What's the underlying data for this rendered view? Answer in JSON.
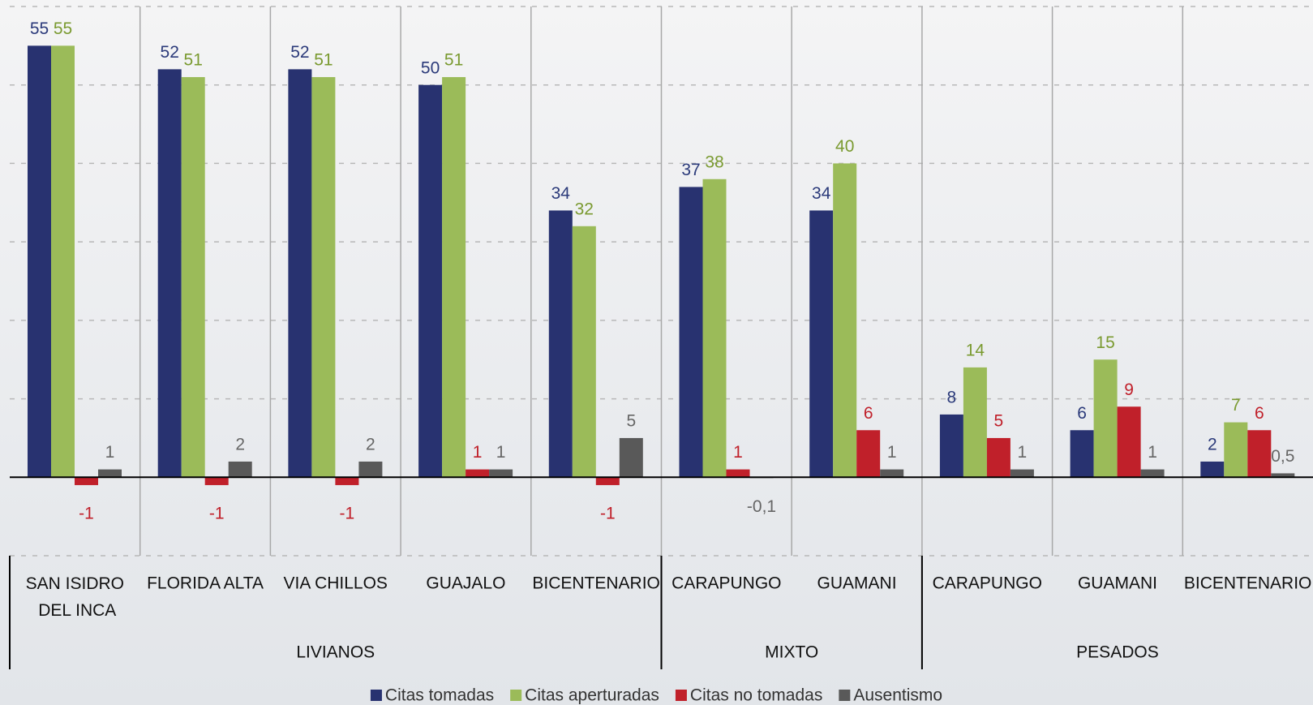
{
  "chart_data": {
    "type": "bar",
    "groups": [
      {
        "label": "LIVIANOS",
        "categories": [
          "SAN ISIDRO DEL INCA",
          "FLORIDA ALTA",
          "VIA CHILLOS",
          "GUAJALO",
          "BICENTENARIO"
        ]
      },
      {
        "label": "MIXTO",
        "categories": [
          "CARAPUNGO",
          "GUAMANI"
        ]
      },
      {
        "label": "PESADOS",
        "categories": [
          "CARAPUNGO",
          "GUAMANI",
          "BICENTENARIO"
        ]
      }
    ],
    "series": [
      {
        "name": "Citas tomadas",
        "color": "#283270",
        "label_color": "#2b3a7a",
        "values": [
          55,
          52,
          52,
          50,
          34,
          37,
          34,
          8,
          6,
          2
        ]
      },
      {
        "name": "Citas aperturadas",
        "color": "#9bbb59",
        "label_color": "#7a9a30",
        "values": [
          55,
          51,
          51,
          51,
          32,
          38,
          40,
          14,
          15,
          7
        ]
      },
      {
        "name": "Citas no tomadas",
        "color": "#c0202a",
        "label_color": "#c0202a",
        "values": [
          -1,
          -1,
          -1,
          1,
          -1,
          1,
          6,
          5,
          9,
          6
        ]
      },
      {
        "name": "Ausentismo",
        "color": "#595959",
        "label_color": "#666666",
        "values": [
          1,
          2,
          2,
          1,
          5,
          -0.1,
          1,
          1,
          1,
          0.5
        ],
        "value_labels": [
          "1",
          "2",
          "2",
          "1",
          "5",
          "-0,1",
          "1",
          "1",
          "1",
          "0,5"
        ]
      }
    ],
    "ylim": [
      -10,
      60
    ],
    "yticks": [
      -10,
      0,
      10,
      20,
      30,
      40,
      50,
      60
    ],
    "grid": true,
    "legend": "bottom"
  }
}
